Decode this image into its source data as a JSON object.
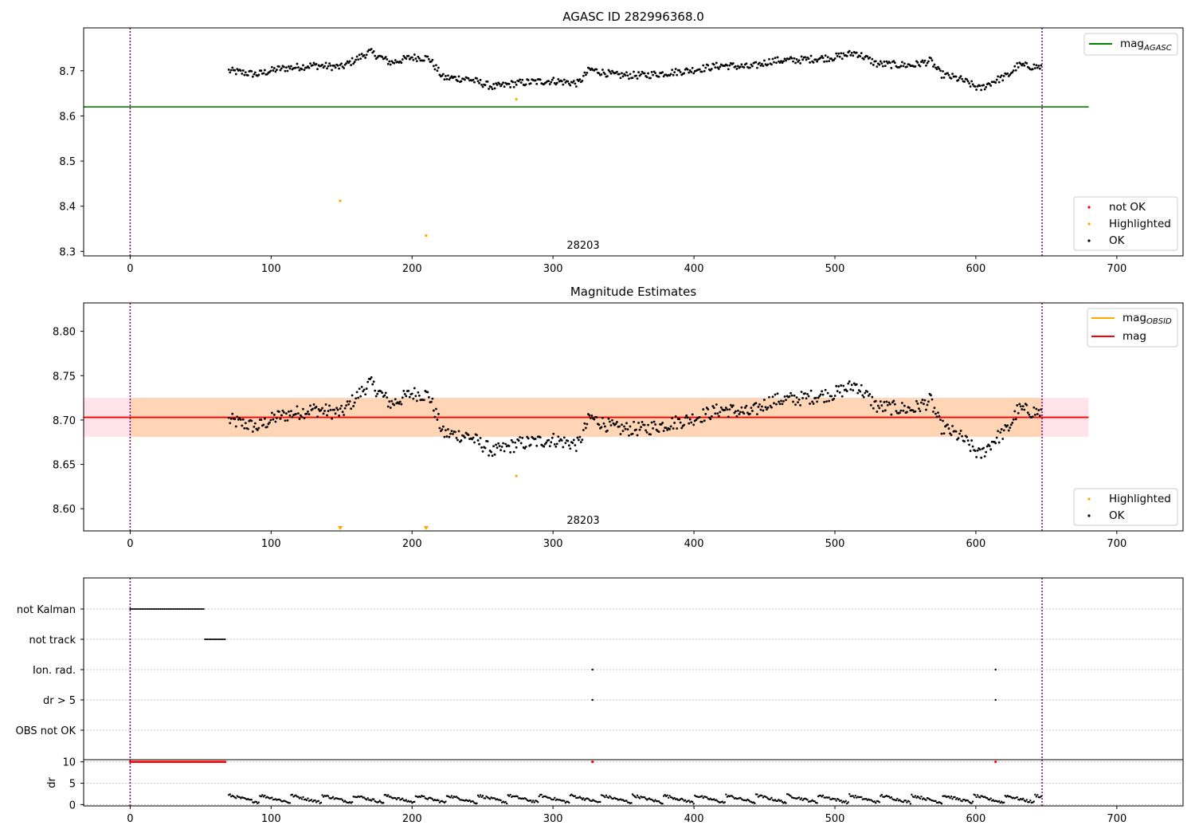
{
  "chart_data": [
    {
      "type": "scatter",
      "title": "AGASC ID 282996368.0",
      "annotation": "28203",
      "xlim": [
        -33,
        747
      ],
      "ylim": [
        8.29,
        8.795
      ],
      "xticks": [
        0,
        100,
        200,
        300,
        400,
        500,
        600,
        700
      ],
      "yticks": [
        8.3,
        8.4,
        8.5,
        8.6,
        8.7
      ],
      "ytick_labels": [
        "8.3",
        "8.4",
        "8.5",
        "8.6",
        "8.7"
      ],
      "vlines": [
        0,
        647
      ],
      "hlines": [
        {
          "name": "mag",
          "subscript": "AGASC",
          "y": 8.62,
          "x": [
            -33,
            680
          ],
          "color": "#008000"
        }
      ],
      "highlighted_points": [
        [
          149,
          8.412
        ],
        [
          210,
          8.335
        ],
        [
          274,
          8.637
        ]
      ],
      "ok_series_windows": {
        "x_start": 70,
        "x_end": 647
      },
      "legend_top": [
        {
          "label": "mag",
          "subscript": "AGASC",
          "color": "#008000"
        }
      ],
      "legend_bottom": [
        {
          "label": "not OK",
          "color": "#ff0000"
        },
        {
          "label": "Highlighted",
          "color": "#ffa500"
        },
        {
          "label": "OK",
          "color": "#000000"
        }
      ]
    },
    {
      "type": "scatter",
      "title": "Magnitude Estimates",
      "annotation": "28203",
      "xlim": [
        -33,
        747
      ],
      "ylim": [
        8.575,
        8.832
      ],
      "xticks": [
        0,
        100,
        200,
        300,
        400,
        500,
        600,
        700
      ],
      "yticks": [
        8.6,
        8.65,
        8.7,
        8.75,
        8.8
      ],
      "ytick_labels": [
        "8.60",
        "8.65",
        "8.70",
        "8.75",
        "8.80"
      ],
      "vlines": [
        0,
        647
      ],
      "mag_line": {
        "name": "mag",
        "y": 8.703,
        "color": "#ff0000"
      },
      "obsid_band": {
        "name": "mag",
        "subscript": "OBSID",
        "y_low": 8.681,
        "y_high": 8.725,
        "x": [
          0,
          647
        ],
        "color": "#ffa500"
      },
      "mag_band": {
        "y_low": 8.681,
        "y_high": 8.725,
        "x": [
          -33,
          680
        ],
        "color": "#ffc0cb"
      },
      "highlighted_points": [
        [
          274,
          8.637
        ]
      ],
      "out_of_range_markers": [
        149,
        210
      ],
      "legend_top": [
        {
          "label": "mag",
          "subscript": "OBSID",
          "color": "#ffa500"
        },
        {
          "label": "mag",
          "color": "#ff0000"
        }
      ],
      "legend_bottom": [
        {
          "label": "Highlighted",
          "color": "#ffa500"
        },
        {
          "label": "OK",
          "color": "#000000"
        }
      ]
    },
    {
      "type": "scatter",
      "xlim": [
        -33,
        747
      ],
      "xticks": [
        0,
        100,
        200,
        300,
        400,
        500,
        600,
        700
      ],
      "vlines": [
        0,
        647
      ],
      "flag_rows": [
        "not Kalman",
        "not track",
        "Ion. rad.",
        "dr > 5",
        "OBS not OK"
      ],
      "flags": {
        "not Kalman": {
          "x_range": [
            0,
            53
          ]
        },
        "not track": {
          "x_range": [
            53,
            68
          ]
        },
        "Ion. rad.": {
          "x_points": [
            328,
            614
          ]
        },
        "dr > 5": {
          "x_points": [
            328,
            614
          ]
        },
        "OBS not OK": {
          "x_points": []
        }
      }
    },
    {
      "type": "scatter",
      "ylabel": "dr",
      "xlim": [
        -33,
        747
      ],
      "ylim": [
        -0.3,
        10.5
      ],
      "yticks": [
        0,
        5,
        10
      ],
      "ytick_labels": [
        "0",
        "5",
        "10"
      ],
      "xticks": [
        0,
        100,
        200,
        300,
        400,
        500,
        600,
        700
      ],
      "vlines": [
        0,
        647
      ],
      "clipped_red_points": {
        "x_range": [
          0,
          68
        ],
        "extra_x": [
          328,
          614
        ],
        "y": 10
      },
      "dr_series_start": 70
    }
  ]
}
